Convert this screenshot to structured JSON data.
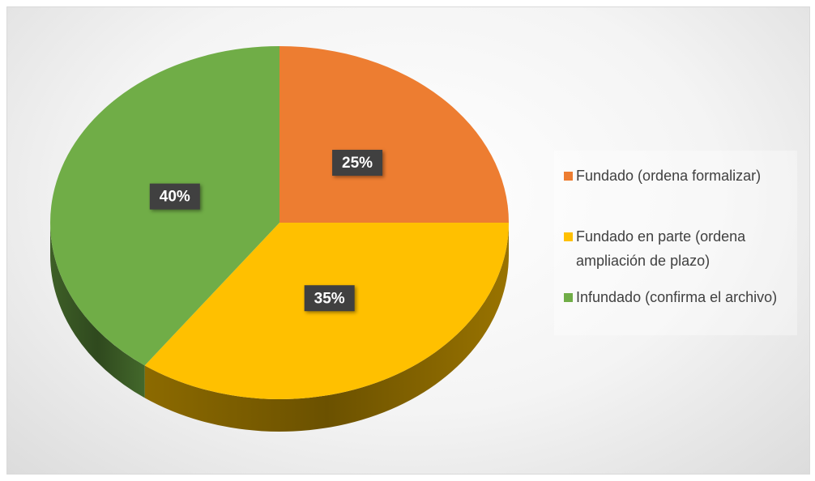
{
  "chart_data": {
    "type": "pie",
    "categories": [
      "Fundado (ordena formalizar)",
      "Fundado en parte (ordena ampliación de plazo)",
      "Infundado (confirma el archivo)"
    ],
    "values": [
      25,
      35,
      40
    ],
    "value_labels": [
      "25%",
      "35%",
      "40%"
    ],
    "colors": [
      "#ed7d31",
      "#ffc000",
      "#70ad47"
    ],
    "legend": "right"
  }
}
